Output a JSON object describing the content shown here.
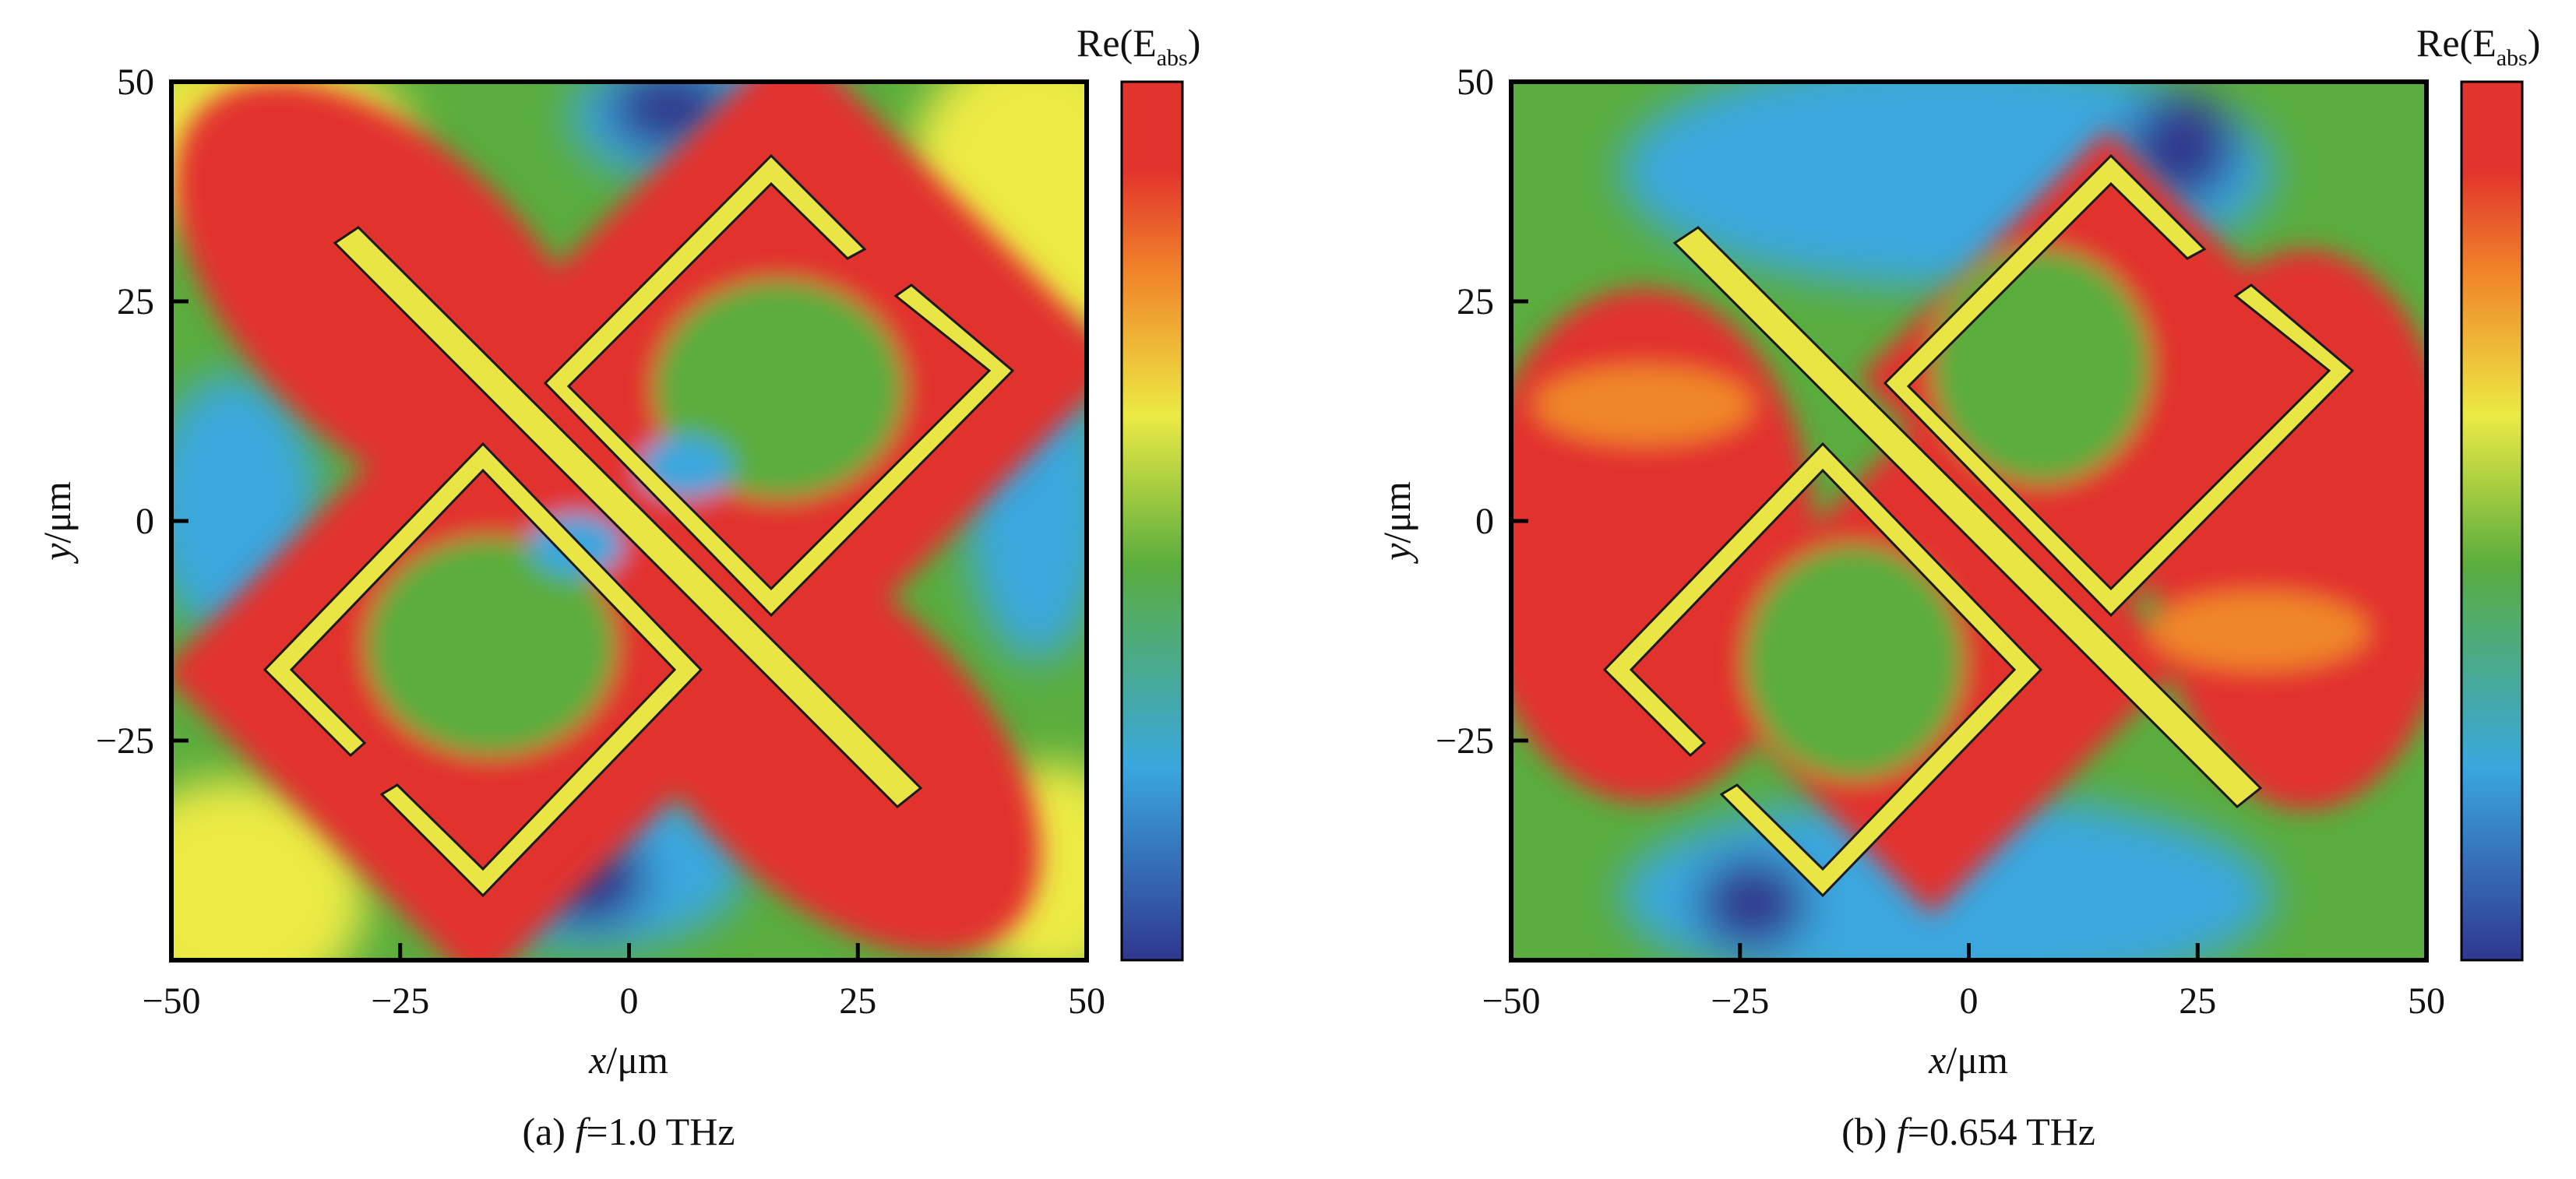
{
  "figure": {
    "colors": {
      "map_low": "#30378f",
      "map_blue": "#3aa7de",
      "map_green": "#5aad3e",
      "map_yellow": "#ecea44",
      "map_orange": "#f0862a",
      "map_high": "#e2332d",
      "structure_fill": "#e9e545",
      "structure_outline": "#1a1a1a"
    }
  },
  "chart_data": [
    {
      "type": "heatmap",
      "caption_prefix": "(a) ",
      "caption_f": "f",
      "caption_value": "=1.0 THz",
      "frequency_THz": 1.0,
      "xlabel_var": "x",
      "xlabel_unit": "/μm",
      "ylabel_var": "y",
      "ylabel_unit": "/μm",
      "xlim": [
        -50,
        50
      ],
      "ylim": [
        -50,
        50
      ],
      "xticks": [
        -50,
        -25,
        0,
        25,
        50
      ],
      "xtick_labels": [
        "−50",
        "−25",
        "0",
        "25",
        "50"
      ],
      "yticks": [
        -25,
        0,
        25,
        50
      ],
      "ytick_labels": [
        "−25",
        "0",
        "25",
        "50"
      ],
      "colorbar_title_main": "Re(E",
      "colorbar_title_sub": "abs",
      "colorbar_title_end": ")",
      "field_regions": [
        {
          "level": "high",
          "description": "two red lobes along diagonal through the split-ring resonators"
        },
        {
          "level": "mid",
          "description": "green inside resonator rings"
        },
        {
          "level": "low",
          "description": "blue/dark-blue patches at top edge and bottom center"
        },
        {
          "level": "upper-mid",
          "description": "yellow corners at top-right and bottom-left"
        }
      ]
    },
    {
      "type": "heatmap",
      "caption_prefix": "(b) ",
      "caption_f": "f",
      "caption_value": "=0.654 THz",
      "frequency_THz": 0.654,
      "xlabel_var": "x",
      "xlabel_unit": "/μm",
      "ylabel_var": "y",
      "ylabel_unit": "/μm",
      "xlim": [
        -50,
        50
      ],
      "ylim": [
        -50,
        50
      ],
      "xticks": [
        -50,
        -25,
        0,
        25,
        50
      ],
      "xtick_labels": [
        "−50",
        "−25",
        "0",
        "25",
        "50"
      ],
      "yticks": [
        -25,
        0,
        25,
        50
      ],
      "ytick_labels": [
        "−25",
        "0",
        "25",
        "50"
      ],
      "colorbar_title_main": "Re(E",
      "colorbar_title_sub": "abs",
      "colorbar_title_end": ")",
      "field_regions": [
        {
          "level": "high",
          "description": "red fields to the left and right of the structure"
        },
        {
          "level": "mid",
          "description": "green at top and bottom bands"
        },
        {
          "level": "low",
          "description": "dark-blue spots inside resonators near center"
        }
      ]
    }
  ]
}
